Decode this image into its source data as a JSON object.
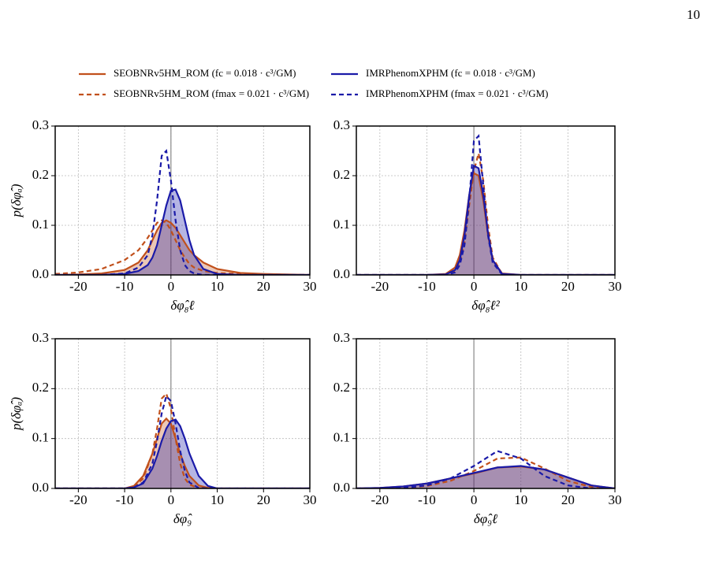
{
  "page_number": "10",
  "chart_data": [
    {
      "type": "density",
      "xlabel": "δφ̂₈ℓ",
      "ylabel": "p(δφ̂ₐ)",
      "xlim": [
        -25,
        30
      ],
      "ylim": [
        0,
        0.3
      ],
      "xticks": [
        -20,
        -10,
        0,
        10,
        20,
        30
      ],
      "yticks": [
        {
          "value": 0,
          "label": "0.0"
        },
        0.1,
        0.2,
        0.3
      ],
      "grid": true,
      "reference_x": 0,
      "x": [
        -25,
        -20,
        -15,
        -10,
        -7,
        -5,
        -4,
        -3,
        -2,
        -1,
        0,
        1,
        2,
        3,
        4,
        5,
        7,
        10,
        15,
        20,
        25,
        30
      ],
      "series": [
        {
          "name": "SEOBNRv5HM_ROM (fc = 0.018 · c³/GM)",
          "color": "#c1501b",
          "dashed": false,
          "fill": true,
          "values": [
            0,
            0.001,
            0.003,
            0.01,
            0.025,
            0.05,
            0.07,
            0.09,
            0.105,
            0.11,
            0.105,
            0.095,
            0.08,
            0.065,
            0.05,
            0.04,
            0.025,
            0.012,
            0.004,
            0.002,
            0.001,
            0
          ]
        },
        {
          "name": "SEOBNRv5HM_ROM (fmax = 0.021 · c³/GM)",
          "color": "#c1501b",
          "dashed": true,
          "fill": false,
          "values": [
            0.002,
            0.005,
            0.012,
            0.03,
            0.05,
            0.075,
            0.09,
            0.105,
            0.11,
            0.105,
            0.09,
            0.07,
            0.05,
            0.035,
            0.022,
            0.015,
            0.008,
            0.004,
            0.002,
            0.001,
            0,
            0
          ]
        },
        {
          "name": "IMRPhenomXPHM (fc = 0.018 · c³/GM)",
          "color": "#1a1aa8",
          "dashed": false,
          "fill": true,
          "values": [
            0,
            0,
            0,
            0.002,
            0.008,
            0.02,
            0.035,
            0.06,
            0.1,
            0.14,
            0.17,
            0.172,
            0.15,
            0.11,
            0.07,
            0.04,
            0.012,
            0.002,
            0,
            0,
            0,
            0
          ]
        },
        {
          "name": "IMRPhenomXPHM (fmax = 0.021 · c³/GM)",
          "color": "#1a1aa8",
          "dashed": true,
          "fill": false,
          "values": [
            0,
            0,
            0,
            0.003,
            0.015,
            0.04,
            0.08,
            0.15,
            0.24,
            0.25,
            0.19,
            0.11,
            0.05,
            0.02,
            0.008,
            0.003,
            0,
            0,
            0,
            0,
            0,
            0
          ]
        }
      ]
    },
    {
      "type": "density",
      "xlabel": "δφ̂₈ℓ²",
      "xlim": [
        -25,
        30
      ],
      "ylim": [
        0,
        0.3
      ],
      "xticks": [
        -20,
        -10,
        0,
        10,
        20,
        30
      ],
      "yticks": [
        {
          "value": 0,
          "label": "0.0"
        },
        0.1,
        0.2,
        0.3
      ],
      "grid": true,
      "reference_x": 0,
      "x": [
        -25,
        -10,
        -6,
        -4,
        -3,
        -2,
        -1,
        0,
        1,
        2,
        3,
        4,
        6,
        10,
        30
      ],
      "series": [
        {
          "color": "#c1501b",
          "dashed": false,
          "fill": true,
          "values": [
            0,
            0,
            0.002,
            0.015,
            0.04,
            0.09,
            0.16,
            0.205,
            0.2,
            0.15,
            0.08,
            0.03,
            0.003,
            0,
            0
          ]
        },
        {
          "color": "#c1501b",
          "dashed": true,
          "fill": false,
          "values": [
            0,
            0,
            0,
            0.008,
            0.025,
            0.065,
            0.14,
            0.21,
            0.245,
            0.19,
            0.1,
            0.035,
            0.002,
            0,
            0
          ]
        },
        {
          "color": "#1a1aa8",
          "dashed": false,
          "fill": true,
          "values": [
            0,
            0,
            0.001,
            0.01,
            0.03,
            0.08,
            0.16,
            0.22,
            0.215,
            0.16,
            0.085,
            0.03,
            0.002,
            0,
            0
          ]
        },
        {
          "color": "#1a1aa8",
          "dashed": true,
          "fill": false,
          "values": [
            0,
            0,
            0,
            0.005,
            0.02,
            0.06,
            0.15,
            0.27,
            0.28,
            0.18,
            0.08,
            0.025,
            0.001,
            0,
            0
          ]
        }
      ]
    },
    {
      "type": "density",
      "xlabel": "δφ̂₉",
      "ylabel": "p(δφ̂ₐ)",
      "xlim": [
        -25,
        30
      ],
      "ylim": [
        0,
        0.3
      ],
      "xticks": [
        -20,
        -10,
        0,
        10,
        20,
        30
      ],
      "yticks": [
        {
          "value": 0,
          "label": "0.0"
        },
        0.1,
        0.2,
        0.3
      ],
      "grid": true,
      "reference_x": 0,
      "x": [
        -25,
        -10,
        -8,
        -6,
        -4,
        -3,
        -2,
        -1,
        0,
        1,
        2,
        3,
        4,
        6,
        8,
        10,
        30
      ],
      "series": [
        {
          "color": "#c1501b",
          "dashed": false,
          "fill": true,
          "values": [
            0,
            0,
            0.005,
            0.025,
            0.07,
            0.1,
            0.13,
            0.14,
            0.13,
            0.1,
            0.07,
            0.045,
            0.025,
            0.006,
            0.001,
            0,
            0
          ]
        },
        {
          "color": "#c1501b",
          "dashed": true,
          "fill": false,
          "values": [
            0,
            0,
            0.003,
            0.02,
            0.07,
            0.12,
            0.18,
            0.19,
            0.16,
            0.1,
            0.05,
            0.02,
            0.008,
            0,
            0,
            0,
            0
          ]
        },
        {
          "color": "#1a1aa8",
          "dashed": false,
          "fill": true,
          "values": [
            0,
            0,
            0.002,
            0.01,
            0.04,
            0.065,
            0.095,
            0.12,
            0.135,
            0.138,
            0.125,
            0.1,
            0.07,
            0.025,
            0.005,
            0,
            0
          ]
        },
        {
          "color": "#1a1aa8",
          "dashed": true,
          "fill": false,
          "values": [
            0,
            0,
            0.002,
            0.012,
            0.05,
            0.095,
            0.15,
            0.185,
            0.175,
            0.13,
            0.075,
            0.035,
            0.012,
            0.001,
            0,
            0,
            0
          ]
        }
      ]
    },
    {
      "type": "density",
      "xlabel": "δφ̂₉ℓ",
      "xlim": [
        -25,
        30
      ],
      "ylim": [
        0,
        0.3
      ],
      "xticks": [
        -20,
        -10,
        0,
        10,
        20,
        30
      ],
      "yticks": [
        {
          "value": 0,
          "label": "0.0"
        },
        0.1,
        0.2,
        0.3
      ],
      "grid": true,
      "reference_x": 0,
      "x": [
        -25,
        -20,
        -15,
        -10,
        -5,
        0,
        5,
        10,
        15,
        20,
        25,
        30
      ],
      "series": [
        {
          "color": "#c1501b",
          "dashed": false,
          "fill": true,
          "values": [
            0,
            0.001,
            0.004,
            0.01,
            0.02,
            0.03,
            0.042,
            0.044,
            0.038,
            0.022,
            0.006,
            0
          ]
        },
        {
          "color": "#c1501b",
          "dashed": true,
          "fill": false,
          "values": [
            0,
            0,
            0.001,
            0.005,
            0.015,
            0.035,
            0.06,
            0.062,
            0.04,
            0.015,
            0.003,
            0
          ]
        },
        {
          "color": "#1a1aa8",
          "dashed": false,
          "fill": true,
          "values": [
            0,
            0.001,
            0.004,
            0.01,
            0.02,
            0.031,
            0.042,
            0.045,
            0.038,
            0.022,
            0.006,
            0
          ]
        },
        {
          "color": "#1a1aa8",
          "dashed": true,
          "fill": false,
          "values": [
            0,
            0,
            0.001,
            0.006,
            0.02,
            0.045,
            0.075,
            0.06,
            0.025,
            0.006,
            0,
            0
          ]
        }
      ]
    }
  ]
}
